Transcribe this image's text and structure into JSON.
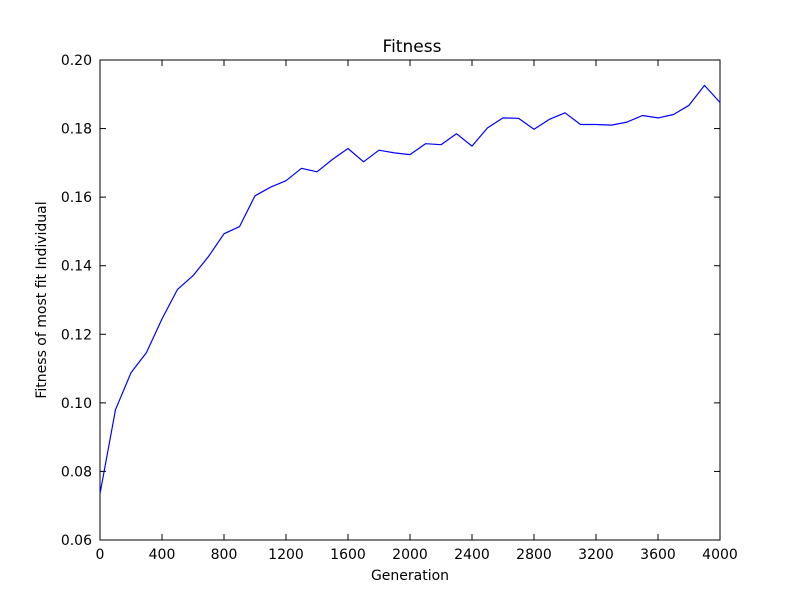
{
  "chart_data": {
    "type": "line",
    "title": "Fitness",
    "xlabel": "Generation",
    "ylabel": "Fitness of most fit Individual",
    "xlim": [
      0,
      4000
    ],
    "ylim": [
      0.06,
      0.2
    ],
    "xticks": [
      0,
      400,
      800,
      1200,
      1600,
      2000,
      2400,
      2800,
      3200,
      3600,
      4000
    ],
    "xtick_labels": [
      "0",
      "400",
      "800",
      "1200",
      "1600",
      "2000",
      "2400",
      "2800",
      "3200",
      "3600",
      "4000"
    ],
    "yticks": [
      0.06,
      0.08,
      0.1,
      0.12,
      0.14,
      0.16,
      0.18,
      0.2
    ],
    "ytick_labels": [
      "0.06",
      "0.08",
      "0.10",
      "0.12",
      "0.14",
      "0.16",
      "0.18",
      "0.20"
    ],
    "grid": false,
    "series": [
      {
        "color": "#0000ff",
        "x": [
          0,
          100,
          200,
          300,
          400,
          500,
          600,
          700,
          800,
          900,
          1000,
          1100,
          1200,
          1300,
          1400,
          1500,
          1600,
          1700,
          1800,
          1900,
          2000,
          2100,
          2200,
          2300,
          2400,
          2500,
          2600,
          2700,
          2800,
          2900,
          3000,
          3100,
          3200,
          3300,
          3400,
          3500,
          3600,
          3700,
          3800,
          3900,
          4000
        ],
        "y": [
          0.0735,
          0.098,
          0.1088,
          0.1147,
          0.1245,
          0.1331,
          0.1371,
          0.1427,
          0.1493,
          0.1514,
          0.1604,
          0.1629,
          0.1648,
          0.1684,
          0.1674,
          0.171,
          0.1742,
          0.1703,
          0.1737,
          0.1729,
          0.1724,
          0.1756,
          0.1753,
          0.1785,
          0.1749,
          0.1802,
          0.1831,
          0.183,
          0.1798,
          0.1827,
          0.1846,
          0.1812,
          0.1812,
          0.181,
          0.1819,
          0.1838,
          0.1831,
          0.1841,
          0.1868,
          0.1926,
          0.1876
        ]
      }
    ]
  }
}
